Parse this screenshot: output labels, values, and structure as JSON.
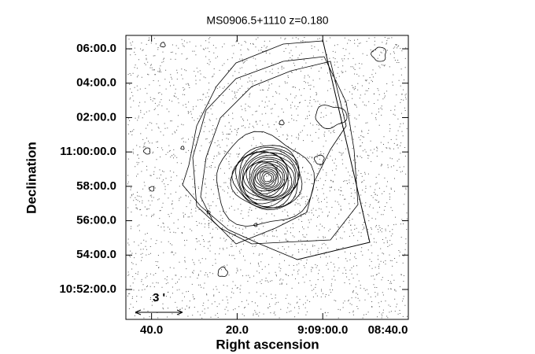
{
  "chart_data": {
    "type": "image",
    "title": "MS0906.5+1110 z=0.180",
    "x_label": "Right ascension",
    "y_label": "Declination",
    "xlim": [
      32986,
      32920
    ],
    "ylim": [
      650.26,
      666.78
    ],
    "xticks": [
      {
        "value": 32980,
        "label": "40.0"
      },
      {
        "value": 32960,
        "label": "20.0"
      },
      {
        "value": 32940,
        "label": "9:09:00.0"
      },
      {
        "value": 32920,
        "label": "08:40.0"
      }
    ],
    "yticks": [
      {
        "value": 666,
        "label": "06:00.0"
      },
      {
        "value": 664,
        "label": "04:00.0"
      },
      {
        "value": 662,
        "label": "02:00.0"
      },
      {
        "value": 660,
        "label": "11:00:00.0"
      },
      {
        "value": 658,
        "label": "58:00.0"
      },
      {
        "value": 656,
        "label": "56:00.0"
      },
      {
        "value": 654,
        "label": "54:00.0"
      },
      {
        "value": 652,
        "label": "10:52:00.0"
      }
    ],
    "annotations": [
      "3 '"
    ]
  }
}
